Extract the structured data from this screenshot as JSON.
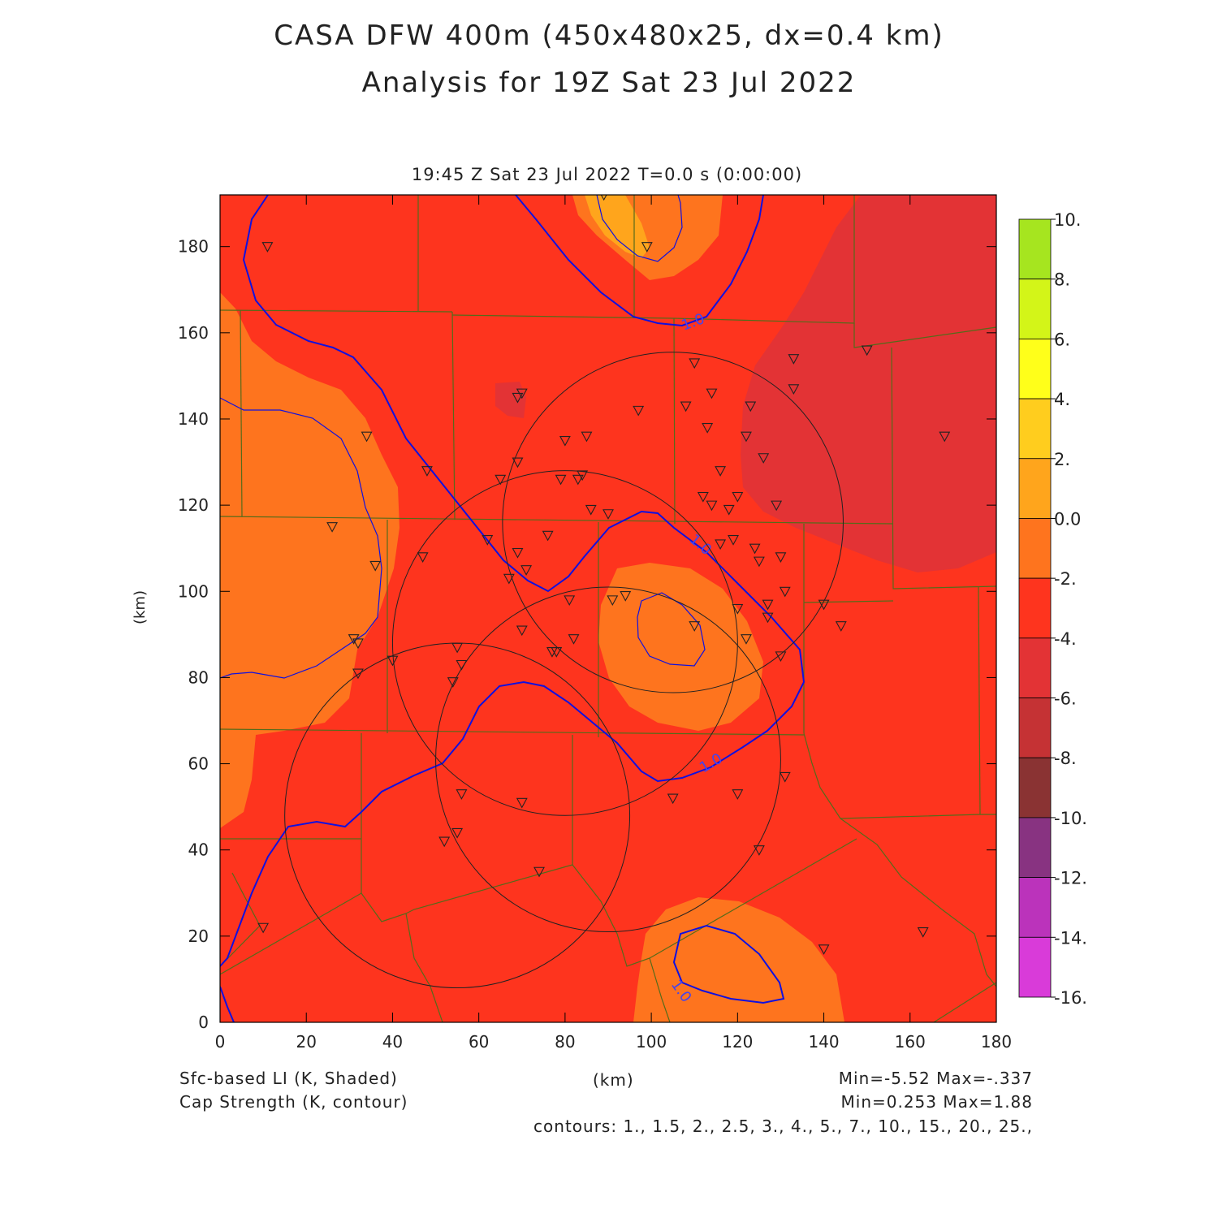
{
  "header": {
    "title_line1": "CASA DFW 400m (450x480x25, dx=0.4 km)",
    "title_line2": "Analysis for 19Z Sat 23 Jul 2022",
    "valid_time": "19:45 Z Sat 23 Jul 2022   T=0.0 s (0:00:00)"
  },
  "footer": {
    "shaded_label": "Sfc-based LI (K, Shaded)",
    "contour_label": "Cap Strength (K, contour)",
    "x_unit": "(km)",
    "shaded_range": "Min=-5.52 Max=-.337",
    "contour_range": "Min=0.253 Max=1.88",
    "contour_levels": "contours: 1., 1.5, 2., 2.5, 3., 4., 5., 7., 10., 15., 20., 25.,"
  },
  "chart_data": {
    "type": "heatmap",
    "xlabel": "(km)",
    "ylabel": "(km)",
    "xlim": [
      0,
      180
    ],
    "ylim": [
      0,
      192
    ],
    "x_ticks": [
      0,
      20,
      40,
      60,
      80,
      100,
      120,
      140,
      160,
      180
    ],
    "y_ticks": [
      0,
      20,
      40,
      60,
      80,
      100,
      120,
      140,
      160,
      180
    ],
    "colorbar": {
      "labels": [
        "10.",
        "8.",
        "6.",
        "4.",
        "2.",
        "0.0",
        "-2.",
        "-4.",
        "-6.",
        "-8.",
        "-10.",
        "-12.",
        "-14.",
        "-16."
      ],
      "levels": [
        10,
        8,
        6,
        4,
        2,
        0,
        -2,
        -4,
        -6,
        -8,
        -10,
        -12,
        -14,
        -16
      ],
      "colors": [
        "#a6e51f",
        "#d3f518",
        "#ffff1a",
        "#ffcd1e",
        "#ffa51c",
        "#fe741e",
        "#fe341e",
        "#e33335",
        "#c53234",
        "#8a3333",
        "#883381",
        "#bb33bb",
        "#d93bd9"
      ]
    },
    "shaded_field_colors": {
      "background_-4_to_-2": "#fe341e",
      "-2_to_0": "#fe741e",
      "0_to_2": "#ffa51c",
      "-6_to_-4": "#e33335"
    },
    "contour_label_value": "1.0",
    "contour_color": "#1010e0",
    "radar_range_rings": [
      {
        "cx": 105,
        "cy": 116,
        "r": 39.5
      },
      {
        "cx": 80,
        "cy": 88,
        "r": 40
      },
      {
        "cx": 90,
        "cy": 61,
        "r": 40
      },
      {
        "cx": 55,
        "cy": 48,
        "r": 40
      }
    ],
    "stations_km": [
      [
        11,
        180
      ],
      [
        89,
        192
      ],
      [
        99,
        180
      ],
      [
        70,
        146
      ],
      [
        69,
        145
      ],
      [
        34,
        136
      ],
      [
        48,
        128
      ],
      [
        69,
        130
      ],
      [
        65,
        126
      ],
      [
        79,
        126
      ],
      [
        84,
        127
      ],
      [
        83,
        126
      ],
      [
        97,
        142
      ],
      [
        80,
        135
      ],
      [
        85,
        136
      ],
      [
        110,
        153
      ],
      [
        108,
        143
      ],
      [
        114,
        146
      ],
      [
        113,
        138
      ],
      [
        116,
        128
      ],
      [
        122,
        136
      ],
      [
        123,
        143
      ],
      [
        133,
        154
      ],
      [
        133,
        147
      ],
      [
        126,
        131
      ],
      [
        129,
        120
      ],
      [
        112,
        122
      ],
      [
        114,
        120
      ],
      [
        118,
        119
      ],
      [
        120,
        122
      ],
      [
        26,
        115
      ],
      [
        36,
        106
      ],
      [
        47,
        108
      ],
      [
        62,
        112
      ],
      [
        69,
        109
      ],
      [
        71,
        105
      ],
      [
        67,
        103
      ],
      [
        76,
        113
      ],
      [
        86,
        119
      ],
      [
        90,
        118
      ],
      [
        116,
        111
      ],
      [
        119,
        112
      ],
      [
        124,
        110
      ],
      [
        125,
        107
      ],
      [
        130,
        108
      ],
      [
        131,
        100
      ],
      [
        127,
        97
      ],
      [
        120,
        96
      ],
      [
        81,
        98
      ],
      [
        91,
        98
      ],
      [
        94,
        99
      ],
      [
        110,
        92
      ],
      [
        122,
        89
      ],
      [
        127,
        94
      ],
      [
        130,
        85
      ],
      [
        140,
        97
      ],
      [
        144,
        92
      ],
      [
        31,
        89
      ],
      [
        32,
        88
      ],
      [
        40,
        84
      ],
      [
        32,
        81
      ],
      [
        55,
        87
      ],
      [
        56,
        83
      ],
      [
        54,
        79
      ],
      [
        70,
        91
      ],
      [
        82,
        89
      ],
      [
        77,
        86
      ],
      [
        78,
        86
      ],
      [
        56,
        53
      ],
      [
        70,
        51
      ],
      [
        52,
        42
      ],
      [
        55,
        44
      ],
      [
        74,
        35
      ],
      [
        105,
        52
      ],
      [
        120,
        53
      ],
      [
        131,
        57
      ],
      [
        125,
        40
      ],
      [
        10,
        22
      ],
      [
        140,
        17
      ],
      [
        163,
        21
      ],
      [
        150,
        156
      ],
      [
        168,
        136
      ]
    ]
  }
}
